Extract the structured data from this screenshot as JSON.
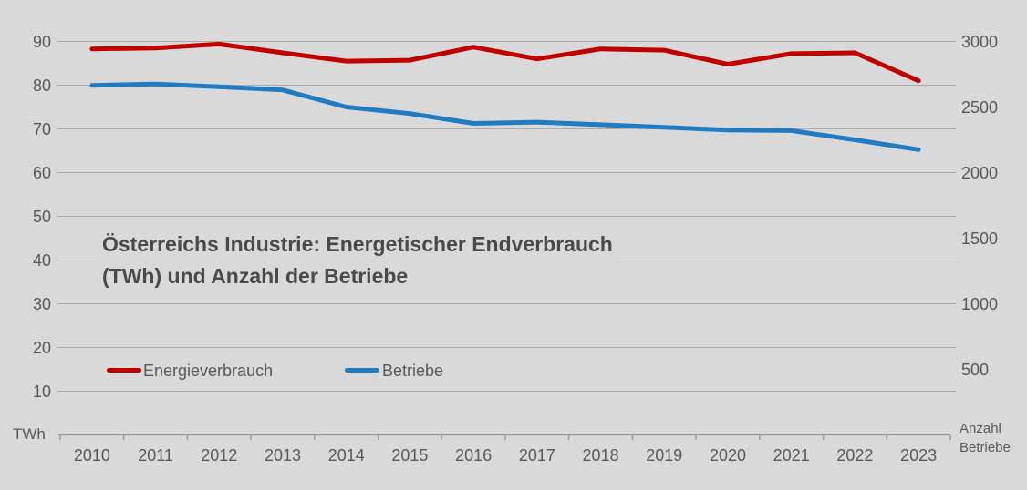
{
  "chart_data": {
    "type": "line",
    "title_line1": "Österreichs Industrie: Energetischer Endverbrauch",
    "title_line2": "(TWh) und Anzahl der Betriebe",
    "categories": [
      "2010",
      "2011",
      "2012",
      "2013",
      "2014",
      "2015",
      "2016",
      "2017",
      "2018",
      "2019",
      "2020",
      "2021",
      "2022",
      "2023"
    ],
    "series": [
      {
        "name": "Energieverbrauch",
        "axis": "left",
        "color": "#c00000",
        "values": [
          88.3,
          88.5,
          89.4,
          87.4,
          85.5,
          85.7,
          88.7,
          86.0,
          88.3,
          88.0,
          84.8,
          87.2,
          87.4,
          81.0
        ]
      },
      {
        "name": "Betriebe",
        "axis": "right",
        "color": "#1f7bc2",
        "values": [
          2665,
          2675,
          2655,
          2630,
          2500,
          2450,
          2375,
          2385,
          2365,
          2345,
          2325,
          2320,
          2250,
          2175
        ]
      }
    ],
    "left_axis": {
      "label": "TWh",
      "ticks": [
        90,
        80,
        70,
        60,
        50,
        40,
        30,
        20,
        10
      ],
      "range": [
        0,
        95
      ]
    },
    "right_axis": {
      "label_line1": "Anzahl",
      "label_line2": "Betriebe",
      "ticks": [
        3000,
        2500,
        2000,
        1500,
        1000,
        500
      ],
      "range": [
        0,
        3166
      ]
    },
    "grid": true,
    "legend_position": "inside-bottom-left"
  },
  "colors": {
    "background": "#d9d9d9",
    "gridline": "#ababab",
    "axis_line": "#9b9b9b",
    "text": "#595959",
    "title_text": "#4a4a4a",
    "series_energieverbrauch": "#c00000",
    "series_betriebe": "#1f7bc2"
  }
}
